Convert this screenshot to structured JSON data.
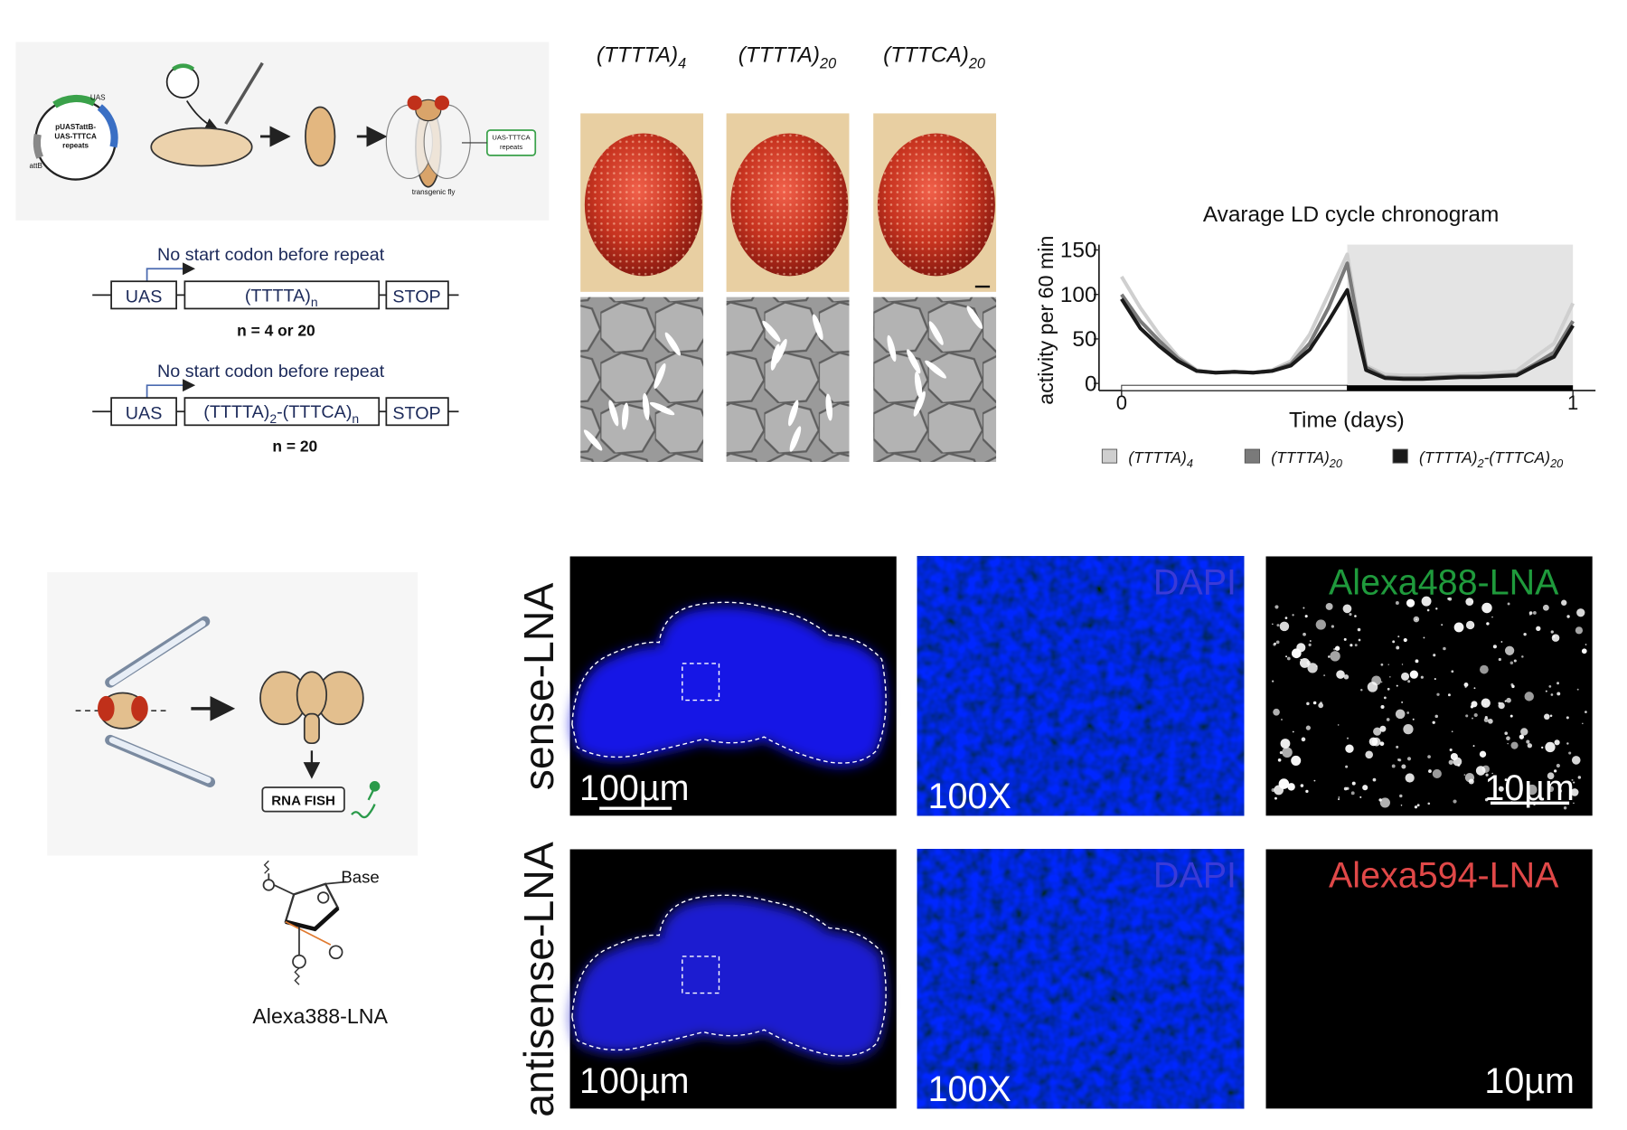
{
  "panel_a": {
    "plasmid_lines": [
      "pUASTattB-",
      "UAS-TTTCA",
      "repeats"
    ],
    "plasmid_uas": "UAS",
    "plasmid_attb": "attB",
    "fly_box_lines": [
      "UAS-TTTCA",
      "repeats"
    ],
    "fly_caption": "transgenic fly"
  },
  "constructs": [
    {
      "note": "No start codon before repeat",
      "promoter": "UAS",
      "repeat_parts": [
        [
          "(TTTTA)",
          "n"
        ]
      ],
      "stop": "STOP",
      "n_label": "n = 4 or 20"
    },
    {
      "note": "No start codon before repeat",
      "promoter": "UAS",
      "repeat_parts": [
        [
          "(TTTTA)",
          "2"
        ],
        [
          "-(TTTCA)",
          "n"
        ]
      ],
      "stop": "STOP",
      "n_label": "n = 20"
    }
  ],
  "genotypes": [
    {
      "base": "(TTTTA)",
      "sub": "4"
    },
    {
      "base": "(TTTTA)",
      "sub": "20"
    },
    {
      "base": "(TTTCA)",
      "sub": "20"
    }
  ],
  "chart_data": {
    "type": "line",
    "title": "Avarage LD cycle chronogram",
    "x_label": "Time (days)",
    "y_label": "activity per 60 min",
    "xlim": [
      -0.05,
      1.05
    ],
    "ylim": [
      -8,
      156
    ],
    "xticks": [
      0,
      1
    ],
    "yticks": [
      0,
      50,
      100,
      150
    ],
    "dark_phase": [
      0.5,
      1
    ],
    "x": [
      0,
      0.0417,
      0.0833,
      0.125,
      0.1667,
      0.2083,
      0.25,
      0.2917,
      0.3333,
      0.375,
      0.4167,
      0.4583,
      0.5,
      0.5417,
      0.5833,
      0.625,
      0.6667,
      0.7083,
      0.75,
      0.7917,
      0.8333,
      0.875,
      0.9167,
      0.9583,
      1
    ],
    "series": [
      {
        "name_parts": [
          [
            "(TTTTA)",
            "4"
          ]
        ],
        "color": "#cfcfcf",
        "values": [
          120,
          85,
          55,
          30,
          15,
          12,
          13,
          12,
          15,
          25,
          55,
          100,
          145,
          20,
          10,
          9,
          9,
          10,
          10,
          11,
          12,
          14,
          30,
          45,
          90
        ]
      },
      {
        "name_parts": [
          [
            "(TTTTA)",
            "20"
          ]
        ],
        "color": "#7a7a7a",
        "values": [
          100,
          70,
          48,
          28,
          14,
          12,
          13,
          12,
          14,
          22,
          45,
          85,
          135,
          18,
          7,
          6,
          6,
          7,
          8,
          8,
          9,
          10,
          22,
          35,
          70
        ]
      },
      {
        "name_parts": [
          [
            "(TTTTA)",
            "2"
          ],
          [
            "-(TTTCA)",
            "20"
          ]
        ],
        "color": "#1a1a1a",
        "values": [
          95,
          62,
          42,
          25,
          14,
          12,
          13,
          12,
          14,
          20,
          38,
          70,
          105,
          15,
          6,
          5,
          5,
          6,
          7,
          7,
          8,
          9,
          20,
          30,
          65
        ]
      }
    ]
  },
  "fish_schematic": {
    "step": "RNA FISH",
    "base": "Base",
    "probe": "Alexa388-LNA"
  },
  "fish_rows": [
    {
      "label": "sense-LNA",
      "scale_brain": "100µm",
      "magnification": "100X",
      "stain": "DAPI",
      "probe": "Alexa488-LNA",
      "scale_zoom": "10µm"
    },
    {
      "label": "antisense-LNA",
      "scale_brain": "100µm",
      "magnification": "100X",
      "stain": "DAPI",
      "probe": "Alexa594-LNA",
      "scale_zoom": "10µm"
    }
  ]
}
